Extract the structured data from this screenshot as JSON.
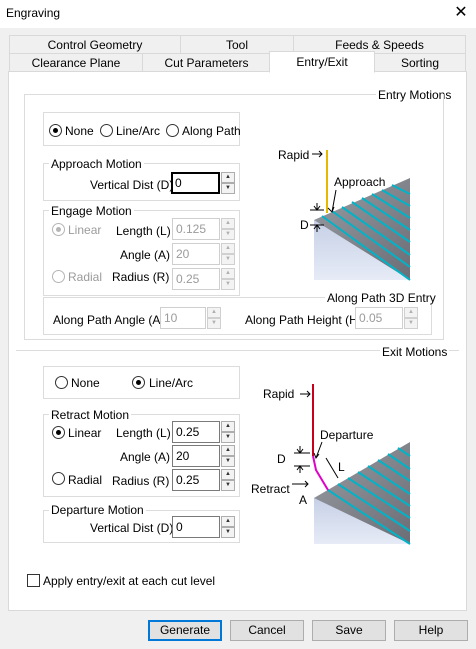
{
  "window": {
    "title": "Engraving",
    "close_glyph": "✕"
  },
  "tabs_row1": [
    "Control Geometry",
    "Tool",
    "Feeds & Speeds"
  ],
  "tabs_row2": [
    "Clearance Plane",
    "Cut Parameters",
    "Entry/Exit",
    "Sorting"
  ],
  "active_tab": "Entry/Exit",
  "entry": {
    "section_title": "Entry Motions",
    "options": [
      "None",
      "Line/Arc",
      "Along Path"
    ],
    "selected": "None",
    "approach": {
      "title": "Approach Motion",
      "vertical_dist_label": "Vertical Dist (D):",
      "vertical_dist_value": "0"
    },
    "engage": {
      "title": "Engage Motion",
      "linear_label": "Linear",
      "radial_label": "Radial",
      "length_label": "Length (L)",
      "length_value": "0.125",
      "angle_label": "Angle (A)",
      "angle_value": "20",
      "radius_label": "Radius (R)",
      "radius_value": "0.25"
    },
    "along_path": {
      "title": "Along Path 3D Entry",
      "angle_label": "Along Path Angle (A)",
      "angle_value": "10",
      "height_label": "Along Path Height (H)",
      "height_value": "0.05"
    },
    "diagram": {
      "rapid": "Rapid",
      "approach": "Approach",
      "d": "D"
    }
  },
  "exit": {
    "section_title": "Exit Motions",
    "options": [
      "None",
      "Line/Arc"
    ],
    "selected": "Line/Arc",
    "retract": {
      "title": "Retract Motion",
      "linear_label": "Linear",
      "radial_label": "Radial",
      "selected": "Linear",
      "length_label": "Length (L)",
      "length_value": "0.25",
      "angle_label": "Angle (A)",
      "angle_value": "20",
      "radius_label": "Radius (R)",
      "radius_value": "0.25"
    },
    "departure": {
      "title": "Departure Motion",
      "vertical_dist_label": "Vertical Dist (D):",
      "vertical_dist_value": "0"
    },
    "diagram": {
      "rapid": "Rapid",
      "departure": "Departure",
      "d": "D",
      "l": "L",
      "retract": "Retract",
      "a": "A"
    }
  },
  "apply_each_level": {
    "label": "Apply entry/exit at each cut level",
    "checked": false
  },
  "buttons": {
    "generate": "Generate",
    "cancel": "Cancel",
    "save": "Save",
    "help": "Help"
  },
  "colors": {
    "rapid": "#e6b800",
    "rapid_exit": "#c8001e",
    "toolpath": "#00b4c8",
    "retract": "#e000c8",
    "focus": "#0078d7"
  }
}
